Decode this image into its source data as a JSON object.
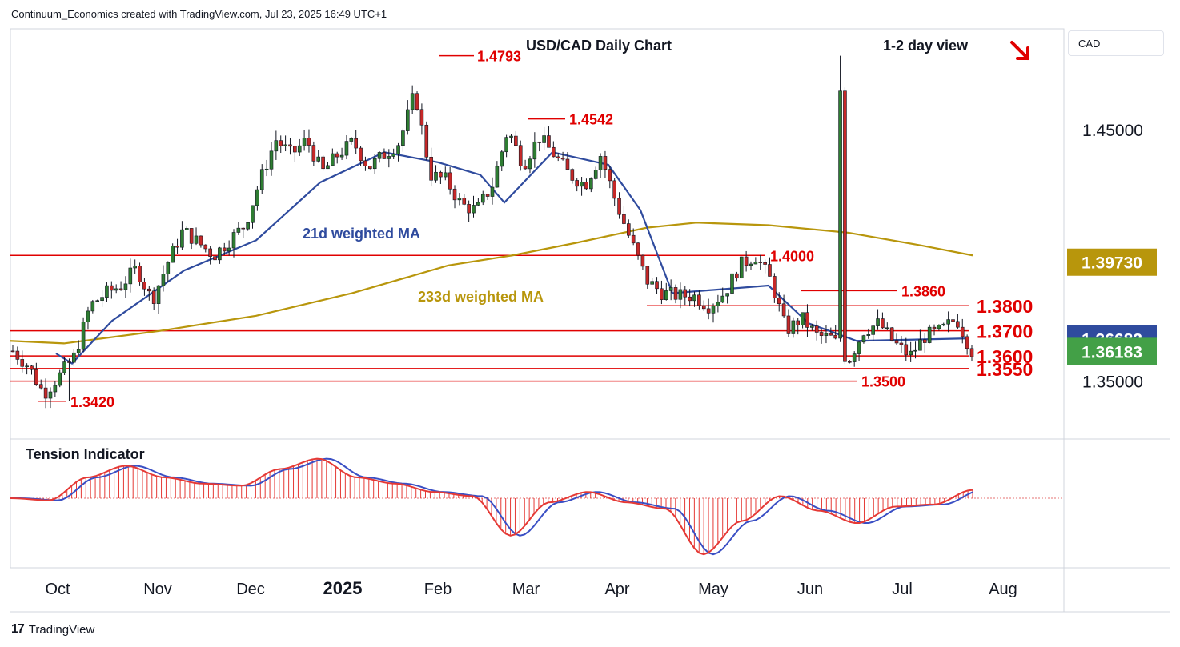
{
  "attribution": "Continuum_Economics created with TradingView.com, Jul 23, 2025 16:49 UTC+1",
  "footer_brand": "TradingView",
  "currency_selector": "CAD",
  "colors": {
    "up": "#2e7d32",
    "down": "#c62828",
    "resistance": "#e00000",
    "ma21": "#2f4b9e",
    "ma233": "#b8960c",
    "tension_line": "#3a4fc4",
    "tension_signal": "#e53935"
  },
  "chart_data": [
    {
      "type": "candlestick",
      "title": "USD/CAD Daily Chart",
      "view_label": "1-2 day view",
      "view_direction_icon": "arrow-down-right",
      "x_ticks": [
        "Oct",
        "Nov",
        "Dec",
        "2025",
        "Feb",
        "Mar",
        "Apr",
        "May",
        "Jun",
        "Jul",
        "Aug"
      ],
      "y_ticks": [
        "1.45000",
        "1.35000"
      ],
      "ylim": [
        1.327,
        1.49
      ],
      "price_labels": [
        {
          "text": "1.39730",
          "value": 1.3973,
          "color": "#b8960c"
        },
        {
          "text": "1.36682",
          "value": 1.36682,
          "color": "#2f4b9e"
        },
        {
          "text": "1.36183",
          "value": 1.36183,
          "color": "#43a047"
        }
      ],
      "annotations": [
        {
          "text": "1.4793",
          "value": 1.4793
        },
        {
          "text": "1.4542",
          "value": 1.4542
        },
        {
          "text": "1.4000",
          "value": 1.4
        },
        {
          "text": "1.3860",
          "value": 1.386
        },
        {
          "text": "1.3500",
          "value": 1.35
        },
        {
          "text": "1.3420",
          "value": 1.342
        }
      ],
      "levels": [
        {
          "text": "1.3800",
          "value": 1.38
        },
        {
          "text": "1.3700",
          "value": 1.37
        },
        {
          "text": "1.3600",
          "value": 1.36
        },
        {
          "text": "1.3550",
          "value": 1.355
        }
      ],
      "series": [
        {
          "name": "21d weighted MA",
          "values": [
            1.361,
            1.357,
            1.374,
            1.394,
            1.406,
            1.429,
            1.441,
            1.437,
            1.432,
            1.421,
            1.441,
            1.436,
            1.418,
            1.385,
            1.388,
            1.373,
            1.366,
            1.367
          ]
        },
        {
          "name": "233d weighted MA",
          "values": [
            1.366,
            1.365,
            1.37,
            1.376,
            1.385,
            1.396,
            1.4,
            1.405,
            1.411,
            1.413,
            1.412,
            1.409,
            1.404,
            1.4
          ]
        }
      ],
      "ohlc_path": [
        1.362,
        1.356,
        1.345,
        1.352,
        1.36,
        1.38,
        1.385,
        1.388,
        1.395,
        1.382,
        1.397,
        1.41,
        1.405,
        1.4,
        1.406,
        1.412,
        1.43,
        1.446,
        1.44,
        1.446,
        1.433,
        1.44,
        1.445,
        1.435,
        1.44,
        1.445,
        1.465,
        1.432,
        1.43,
        1.42,
        1.418,
        1.428,
        1.45,
        1.436,
        1.447,
        1.44,
        1.432,
        1.428,
        1.44,
        1.421,
        1.405,
        1.39,
        1.385,
        1.384,
        1.384,
        1.38,
        1.385,
        1.396,
        1.4,
        1.39,
        1.37,
        1.375,
        1.368,
        1.367,
        1.358,
        1.37,
        1.373,
        1.365,
        1.36,
        1.368,
        1.37,
        1.375,
        1.362
      ],
      "tension_indicator": {
        "label": "Tension Indicator",
        "values": [
          0.0,
          -0.05,
          0.5,
          0.78,
          0.5,
          0.35,
          0.3,
          0.7,
          0.95,
          0.5,
          0.35,
          0.15,
          0.05,
          -0.9,
          -0.1,
          0.15,
          -0.1,
          -0.25,
          -1.35,
          -0.55,
          0.05,
          -0.3,
          -0.6,
          -0.2,
          -0.15,
          0.2
        ]
      }
    }
  ]
}
